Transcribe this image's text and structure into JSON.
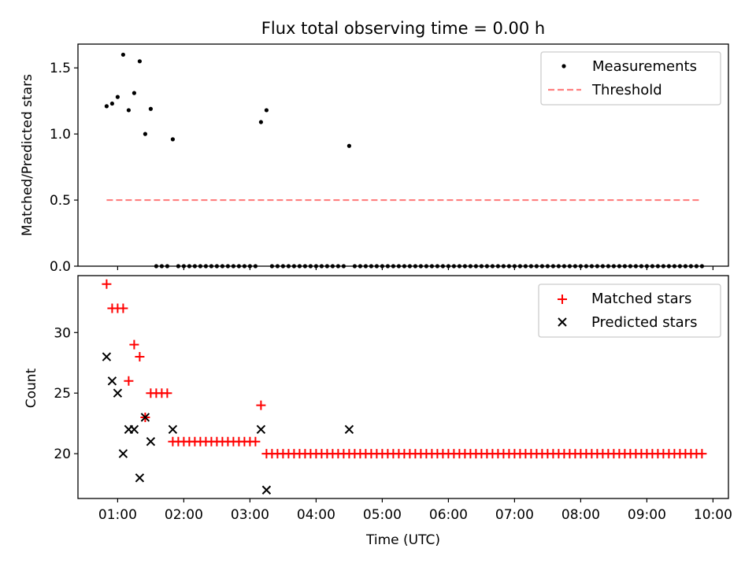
{
  "chart_data": [
    {
      "type": "scatter",
      "title": "Flux total observing time = 0.00 h",
      "xlabel": "",
      "ylabel": "Matched/Predicted stars",
      "ylim": [
        0.0,
        1.68
      ],
      "xlim": [
        "00:24",
        "10:14"
      ],
      "grid": false,
      "legend_position": "top-right",
      "yticks": [
        0.0,
        0.5,
        1.0,
        1.5
      ],
      "ytick_labels": [
        "0.0",
        "0.5",
        "1.0",
        "1.5"
      ],
      "series": [
        {
          "name": "Measurements",
          "kind": "points",
          "color": "#000000",
          "points": [
            [
              "00:50",
              1.21
            ],
            [
              "00:55",
              1.23
            ],
            [
              "01:00",
              1.28
            ],
            [
              "01:05",
              1.6
            ],
            [
              "01:10",
              1.18
            ],
            [
              "01:15",
              1.31
            ],
            [
              "01:20",
              1.55
            ],
            [
              "01:25",
              1.0
            ],
            [
              "01:30",
              1.19
            ],
            [
              "01:50",
              0.96
            ],
            [
              "03:10",
              1.09
            ],
            [
              "03:15",
              1.18
            ],
            [
              "04:30",
              0.91
            ]
          ],
          "zero_runs": [
            [
              "01:35",
              "01:45",
              5
            ],
            [
              "01:55",
              "03:05",
              5
            ],
            [
              "03:20",
              "04:25",
              5
            ],
            [
              "04:35",
              "09:50",
              5
            ]
          ]
        },
        {
          "name": "Threshold",
          "kind": "dashed-line",
          "color": "#ff7f7f",
          "x": [
            "00:50",
            "09:50"
          ],
          "y": [
            0.5,
            0.5
          ]
        }
      ]
    },
    {
      "type": "scatter",
      "title": "",
      "xlabel": "Time (UTC)",
      "ylabel": "Count",
      "ylim": [
        16.3,
        34.7
      ],
      "xlim": [
        "00:24",
        "10:14"
      ],
      "grid": false,
      "legend_position": "top-right",
      "yticks": [
        20,
        25,
        30
      ],
      "ytick_labels": [
        "20",
        "25",
        "30"
      ],
      "xticks": [
        "01:00",
        "02:00",
        "03:00",
        "04:00",
        "05:00",
        "06:00",
        "07:00",
        "08:00",
        "09:00",
        "10:00"
      ],
      "xtick_labels": [
        "01:00",
        "02:00",
        "03:00",
        "04:00",
        "05:00",
        "06:00",
        "07:00",
        "08:00",
        "09:00",
        "10:00"
      ],
      "series": [
        {
          "name": "Matched stars",
          "marker": "plus",
          "color": "#ff0000",
          "points": [
            [
              "00:50",
              34
            ],
            [
              "00:55",
              32
            ],
            [
              "01:00",
              32
            ],
            [
              "01:05",
              32
            ],
            [
              "01:10",
              26
            ],
            [
              "01:15",
              29
            ],
            [
              "01:20",
              28
            ],
            [
              "01:25",
              23
            ],
            [
              "01:30",
              25
            ],
            [
              "01:35",
              25
            ],
            [
              "01:40",
              25
            ],
            [
              "01:45",
              25
            ],
            [
              "03:10",
              24
            ]
          ],
          "runs": [
            [
              "01:50",
              "03:05",
              5,
              21
            ],
            [
              "03:15",
              "09:50",
              5,
              20
            ]
          ]
        },
        {
          "name": "Predicted stars",
          "marker": "x",
          "color": "#000000",
          "points": [
            [
              "00:50",
              28
            ],
            [
              "00:55",
              26
            ],
            [
              "01:00",
              25
            ],
            [
              "01:05",
              20
            ],
            [
              "01:10",
              22
            ],
            [
              "01:15",
              22
            ],
            [
              "01:20",
              18
            ],
            [
              "01:25",
              23
            ],
            [
              "01:30",
              21
            ],
            [
              "01:50",
              22
            ],
            [
              "03:10",
              22
            ],
            [
              "03:15",
              17
            ],
            [
              "04:30",
              22
            ]
          ]
        }
      ]
    }
  ]
}
